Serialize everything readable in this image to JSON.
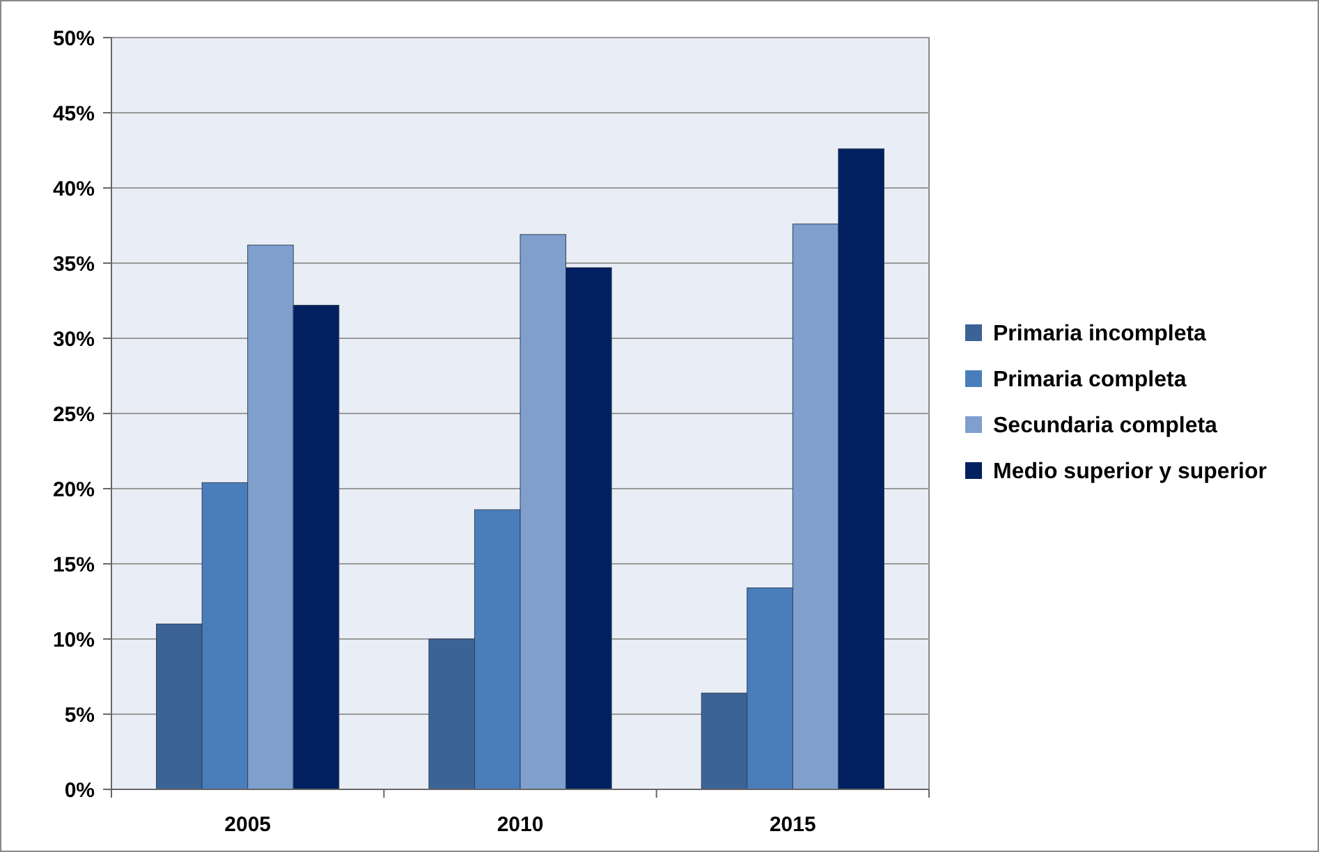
{
  "chart_data": {
    "type": "bar",
    "categories": [
      "2005",
      "2010",
      "2015"
    ],
    "series": [
      {
        "name": "Primaria incompleta",
        "color": "#3b6396",
        "values": [
          11.0,
          10.0,
          6.4
        ]
      },
      {
        "name": "Primaria completa",
        "color": "#4a7ebb",
        "values": [
          20.4,
          18.6,
          13.4
        ]
      },
      {
        "name": "Secundaria completa",
        "color": "#7f9fcd",
        "values": [
          36.2,
          36.9,
          37.6
        ]
      },
      {
        "name": "Medio superior y superior",
        "color": "#002060",
        "values": [
          32.2,
          34.7,
          42.6
        ]
      }
    ],
    "ylim": [
      0,
      50
    ],
    "yticks": [
      {
        "value": 0,
        "label": "0%"
      },
      {
        "value": 5,
        "label": "5%"
      },
      {
        "value": 10,
        "label": "10%"
      },
      {
        "value": 15,
        "label": "15%"
      },
      {
        "value": 20,
        "label": "20%"
      },
      {
        "value": 25,
        "label": "25%"
      },
      {
        "value": 30,
        "label": "30%"
      },
      {
        "value": 35,
        "label": "35%"
      },
      {
        "value": 40,
        "label": "40%"
      },
      {
        "value": 45,
        "label": "45%"
      },
      {
        "value": 50,
        "label": "50%"
      }
    ],
    "grid": "y",
    "legend": "right"
  }
}
